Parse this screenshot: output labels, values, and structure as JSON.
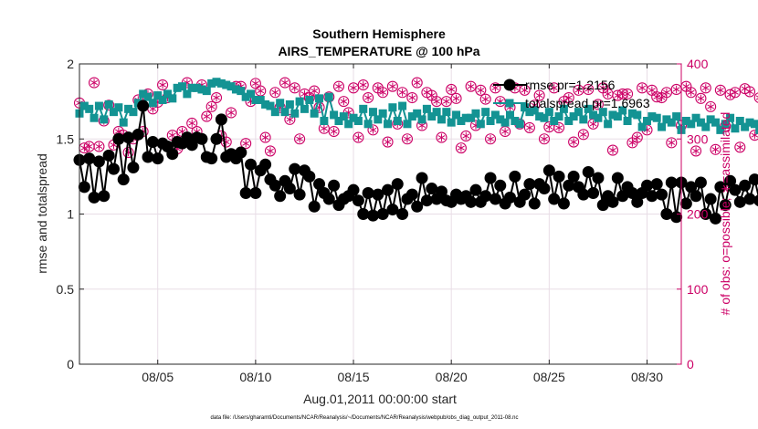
{
  "chart_data": {
    "type": "line",
    "title": "Southern Hemisphere",
    "subtitle": "AIRS_TEMPERATURE @ 100 hPa",
    "xlabel": "Aug.01,2011 00:00:00 start",
    "ylabel": "rmse and totalspread",
    "y2label": "# of obs: o=possible; ∗=assimilated",
    "footer": "data file: /Users/gharamti/Documents/NCAR/Reanalysis/~/Documents/NCAR/Reanalysis/webpub/obs_diag_output_2011-08.nc",
    "xlim": [
      1,
      31.75
    ],
    "ylim": [
      0,
      2
    ],
    "y2lim": [
      0,
      400
    ],
    "xticks": [
      {
        "value": 5,
        "label": "08/05"
      },
      {
        "value": 10,
        "label": "08/10"
      },
      {
        "value": 15,
        "label": "08/15"
      },
      {
        "value": 20,
        "label": "08/20"
      },
      {
        "value": 25,
        "label": "08/25"
      },
      {
        "value": 30,
        "label": "08/30"
      }
    ],
    "yticks": [
      {
        "value": 0,
        "label": "0"
      },
      {
        "value": 0.5,
        "label": "0.5"
      },
      {
        "value": 1,
        "label": "1"
      },
      {
        "value": 1.5,
        "label": "1.5"
      },
      {
        "value": 2,
        "label": "2"
      }
    ],
    "y2ticks": [
      {
        "value": 0,
        "label": "0"
      },
      {
        "value": 100,
        "label": "100"
      },
      {
        "value": 200,
        "label": "200"
      },
      {
        "value": 300,
        "label": "300"
      },
      {
        "value": 400,
        "label": "400"
      }
    ],
    "grid": true,
    "legend_position": "top-right",
    "x_step": 0.25,
    "series": [
      {
        "name": "rmse  pr=1.2156",
        "color": "#000000",
        "axis": "left",
        "marker": "circle",
        "values": [
          1.36,
          1.18,
          1.37,
          1.11,
          1.35,
          1.12,
          1.39,
          1.3,
          1.5,
          1.23,
          1.51,
          1.31,
          1.53,
          1.72,
          1.38,
          1.48,
          1.37,
          1.47,
          1.45,
          1.4,
          1.48,
          1.47,
          1.51,
          1.46,
          1.51,
          1.5,
          1.38,
          1.37,
          1.5,
          1.63,
          1.38,
          1.4,
          1.37,
          1.41,
          1.14,
          1.33,
          1.14,
          1.29,
          1.33,
          1.23,
          1.19,
          1.12,
          1.22,
          1.17,
          1.3,
          1.13,
          1.29,
          1.25,
          1.05,
          1.2,
          1.14,
          1.1,
          1.19,
          1.06,
          1.1,
          1.12,
          1.16,
          1.09,
          1.0,
          1.14,
          0.99,
          1.13,
          1.0,
          1.16,
          1.03,
          1.2,
          1.0,
          1.1,
          1.13,
          1.05,
          1.24,
          1.09,
          1.17,
          1.1,
          1.15,
          1.09,
          1.08,
          1.13,
          1.1,
          1.12,
          1.08,
          1.16,
          1.08,
          1.12,
          1.24,
          1.1,
          1.19,
          1.07,
          1.11,
          1.25,
          1.08,
          1.13,
          1.2,
          1.07,
          1.2,
          1.17,
          1.29,
          1.1,
          1.25,
          1.07,
          1.19,
          1.25,
          1.18,
          1.13,
          1.28,
          1.14,
          1.24,
          1.06,
          1.12,
          1.08,
          1.24,
          1.12,
          1.18,
          1.14,
          1.08,
          1.14,
          1.19,
          1.12,
          1.2,
          1.13,
          1.0,
          1.21,
          0.98,
          1.21,
          1.07,
          1.18,
          1.12,
          1.21,
          1.0,
          1.1,
          0.97,
          1.18,
          1.06,
          1.22,
          1.16,
          1.08,
          1.19,
          1.1,
          1.23,
          1.09,
          1.24,
          1.16,
          1.25,
          1.08,
          1.2,
          1.04,
          1.18,
          1.21,
          1.1,
          1.25,
          1.03,
          1.26,
          1.14
        ]
      },
      {
        "name": "totalspread pr=1.6963",
        "color": "#139393",
        "axis": "left",
        "marker": "square",
        "values": [
          1.67,
          1.72,
          1.7,
          1.64,
          1.72,
          1.63,
          1.73,
          1.68,
          1.71,
          1.61,
          1.7,
          1.68,
          1.74,
          1.8,
          1.78,
          1.74,
          1.79,
          1.76,
          1.8,
          1.77,
          1.84,
          1.85,
          1.8,
          1.84,
          1.84,
          1.83,
          1.82,
          1.87,
          1.88,
          1.87,
          1.86,
          1.85,
          1.83,
          1.82,
          1.78,
          1.8,
          1.76,
          1.76,
          1.73,
          1.72,
          1.68,
          1.74,
          1.68,
          1.73,
          1.67,
          1.75,
          1.7,
          1.76,
          1.67,
          1.77,
          1.62,
          1.78,
          1.66,
          1.62,
          1.65,
          1.6,
          1.64,
          1.62,
          1.7,
          1.6,
          1.68,
          1.63,
          1.67,
          1.6,
          1.71,
          1.62,
          1.72,
          1.6,
          1.65,
          1.67,
          1.63,
          1.7,
          1.65,
          1.68,
          1.63,
          1.68,
          1.61,
          1.66,
          1.62,
          1.64,
          1.64,
          1.67,
          1.6,
          1.68,
          1.62,
          1.66,
          1.63,
          1.61,
          1.66,
          1.62,
          1.6,
          1.71,
          1.68,
          1.69,
          1.65,
          1.64,
          1.68,
          1.62,
          1.65,
          1.7,
          1.62,
          1.65,
          1.68,
          1.63,
          1.7,
          1.66,
          1.64,
          1.68,
          1.6,
          1.66,
          1.65,
          1.69,
          1.62,
          1.67,
          1.66,
          1.58,
          1.62,
          1.65,
          1.64,
          1.58,
          1.63,
          1.61,
          1.65,
          1.56,
          1.62,
          1.6,
          1.64,
          1.61,
          1.58,
          1.63,
          1.61,
          1.56,
          1.6,
          1.64,
          1.57,
          1.62,
          1.58,
          1.61,
          1.6,
          1.56,
          1.62,
          1.6,
          1.58,
          1.63,
          1.55,
          1.61,
          1.59,
          1.57,
          1.6,
          1.54,
          1.62,
          1.53,
          1.63
        ]
      },
      {
        "name": "",
        "color": "#cc0066",
        "axis": "right",
        "marker": "circle-star",
        "values": [
          348,
          288,
          290,
          375,
          290,
          324,
          345,
          292,
          310,
          305,
          282,
          300,
          352,
          310,
          360,
          340,
          349,
          372,
          355,
          305,
          287,
          310,
          375,
          321,
          310,
          372,
          330,
          343,
          355,
          304,
          296,
          335,
          370,
          370,
          294,
          350,
          374,
          364,
          302,
          284,
          362,
          342,
          375,
          326,
          368,
          300,
          360,
          355,
          364,
          342,
          314,
          356,
          310,
          370,
          350,
          335,
          368,
          302,
          372,
          355,
          312,
          368,
          362,
          296,
          370,
          320,
          362,
          300,
          355,
          375,
          318,
          362,
          358,
          350,
          302,
          350,
          366,
          354,
          288,
          304,
          370,
          318,
          365,
          353,
          300,
          368,
          350,
          310,
          342,
          368,
          320,
          365,
          315,
          345,
          358,
          300,
          316,
          368,
          315,
          350,
          355,
          296,
          365,
          306,
          366,
          320,
          346,
          368,
          360,
          285,
          358,
          360,
          360,
          295,
          302,
          368,
          312,
          365,
          356,
          355,
          362,
          295,
          366,
          318,
          370,
          362,
          284,
          354,
          368,
          343,
          286,
          365,
          317,
          359,
          362,
          289,
          367,
          363,
          305,
          355,
          368,
          321,
          370,
          350,
          308,
          362,
          362,
          350,
          165,
          340
        ]
      }
    ]
  }
}
